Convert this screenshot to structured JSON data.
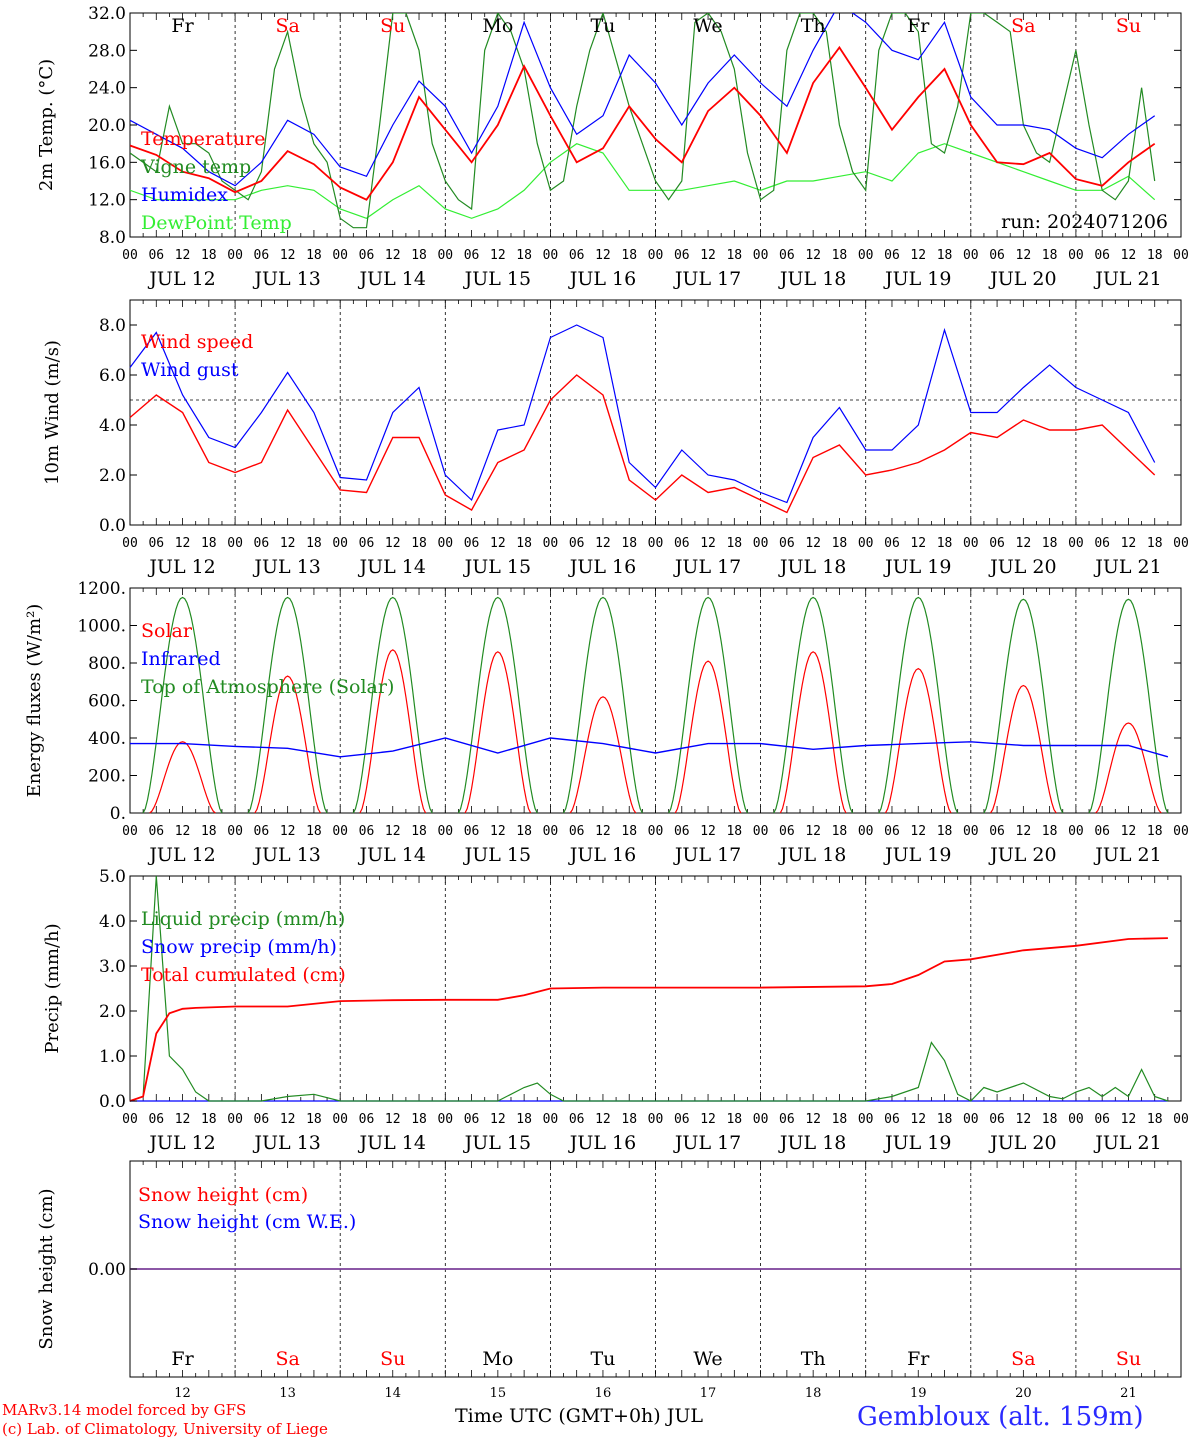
{
  "footer": {
    "model_line": "MARv3.14 model forced by GFS",
    "credit_line": "(c) Lab. of Climatology, University of Liege",
    "time_axis_label": "Time UTC (GMT+0h) JUL",
    "station": "Gembloux (alt. 159m)"
  },
  "colors": {
    "red": "#ff0000",
    "green": "#228b22",
    "blue": "#0000ff",
    "lightgreen": "#33ee33",
    "purple": "#7b3f9a",
    "weekend": "#ff0000",
    "weekday": "#000000"
  },
  "days": {
    "dates": [
      "JUL 12",
      "JUL 13",
      "JUL 14",
      "JUL 15",
      "JUL 16",
      "JUL 17",
      "JUL 18",
      "JUL 19",
      "JUL 20",
      "JUL 21"
    ],
    "weekday": [
      "Fr",
      "Sa",
      "Su",
      "Mo",
      "Tu",
      "We",
      "Th",
      "Fr",
      "Sa",
      "Su"
    ],
    "weekend": [
      false,
      true,
      true,
      false,
      false,
      false,
      false,
      false,
      true,
      true
    ],
    "day_numbers": [
      "12",
      "13",
      "14",
      "15",
      "16",
      "17",
      "18",
      "19",
      "20",
      "21"
    ],
    "hour_ticks": [
      "00",
      "06",
      "12",
      "18"
    ]
  },
  "chart_data": [
    {
      "type": "line",
      "ylabel": "2m Temp. (°C)",
      "ylim": [
        8,
        32
      ],
      "yticks": [
        "8.0",
        "12.0",
        "16.0",
        "20.0",
        "24.0",
        "28.0",
        "32.0"
      ],
      "annotation": "run: 2024071206",
      "x_unit": "hours since 2024-07-12 00 UTC",
      "series": [
        {
          "name": "Temperature",
          "color": "red",
          "x": [
            0,
            6,
            12,
            18,
            24,
            30,
            36,
            42,
            48,
            54,
            60,
            66,
            72,
            78,
            84,
            90,
            96,
            102,
            108,
            114,
            120,
            126,
            132,
            138,
            144,
            150,
            156,
            162,
            168,
            174,
            180,
            186,
            192,
            198,
            204,
            210,
            216,
            222,
            228,
            234
          ],
          "values": [
            17.8,
            16.8,
            15,
            14.3,
            12.8,
            14,
            17.2,
            15.8,
            13.3,
            12,
            16,
            23,
            19.5,
            16,
            20,
            26.3,
            21,
            16,
            17.5,
            22,
            18.5,
            16,
            21.5,
            24,
            21,
            17,
            24.5,
            28.3,
            24,
            19.5,
            23,
            26,
            20,
            16,
            15.8,
            17,
            14.2,
            13.5,
            16,
            18
          ]
        },
        {
          "name": "Vigne temp",
          "color": "green",
          "x": [
            0,
            3,
            6,
            9,
            12,
            15,
            18,
            21,
            24,
            27,
            30,
            33,
            36,
            39,
            42,
            45,
            48,
            51,
            54,
            57,
            60,
            63,
            66,
            69,
            72,
            75,
            78,
            81,
            84,
            87,
            90,
            93,
            96,
            99,
            102,
            105,
            108,
            111,
            114,
            117,
            120,
            123,
            126,
            129,
            132,
            135,
            138,
            141,
            144,
            147,
            150,
            153,
            156,
            159,
            162,
            165,
            168,
            171,
            174,
            177,
            180,
            183,
            186,
            189,
            192,
            195,
            198,
            201,
            204,
            207,
            210,
            213,
            216,
            219,
            222,
            225,
            228,
            231,
            234
          ],
          "values": [
            17,
            16,
            15,
            22,
            18,
            18,
            17,
            14,
            13,
            12,
            15,
            26,
            30,
            23,
            18,
            16,
            10,
            9,
            9,
            20,
            32,
            32,
            28,
            18,
            14,
            12,
            11,
            28,
            32,
            30,
            26,
            18,
            13,
            14,
            22,
            28,
            32,
            27,
            22,
            18,
            14,
            12,
            14,
            31,
            32,
            30,
            26,
            17,
            12,
            13,
            28,
            32,
            32,
            30,
            20,
            15,
            13,
            28,
            32,
            32,
            30,
            18,
            17,
            22,
            32,
            32,
            31,
            30,
            20,
            17,
            16,
            22,
            28,
            20,
            13,
            12,
            14,
            24,
            14
          ]
        },
        {
          "name": "Humidex",
          "color": "blue",
          "x": [
            0,
            6,
            12,
            18,
            24,
            30,
            36,
            42,
            48,
            54,
            60,
            66,
            72,
            78,
            84,
            90,
            96,
            102,
            108,
            114,
            120,
            126,
            132,
            138,
            144,
            150,
            156,
            162,
            168,
            174,
            180,
            186,
            192,
            198,
            204,
            210,
            216,
            222,
            228,
            234
          ],
          "values": [
            20.5,
            19,
            17.5,
            15,
            13.5,
            16,
            20.5,
            19,
            15.5,
            14.5,
            20,
            24.7,
            22,
            17,
            22,
            31,
            24,
            19,
            21,
            27.5,
            24.5,
            20,
            24.5,
            27.5,
            24.5,
            22,
            28,
            33,
            31,
            28,
            27,
            31,
            23,
            20,
            20,
            19.5,
            17.5,
            16.5,
            19,
            21
          ]
        },
        {
          "name": "DewPoint Temp",
          "color": "lightgreen",
          "x": [
            0,
            6,
            12,
            18,
            24,
            30,
            36,
            42,
            48,
            54,
            60,
            66,
            72,
            78,
            84,
            90,
            96,
            102,
            108,
            114,
            120,
            126,
            132,
            138,
            144,
            150,
            156,
            162,
            168,
            174,
            180,
            186,
            192,
            198,
            204,
            210,
            216,
            222,
            228,
            234
          ],
          "values": [
            13,
            12,
            12,
            12,
            12,
            13,
            13.5,
            13,
            11,
            10,
            12,
            13.5,
            11,
            10,
            11,
            13,
            16,
            18,
            17,
            13,
            13,
            13,
            13.5,
            14,
            13,
            14,
            14,
            14.5,
            15,
            14,
            17,
            18,
            17,
            16,
            15,
            14,
            13,
            13,
            14.5,
            12
          ]
        }
      ]
    },
    {
      "type": "line",
      "ylabel": "10m Wind (m/s)",
      "ylim": [
        0,
        9
      ],
      "yticks": [
        "0.0",
        "2.0",
        "4.0",
        "6.0",
        "8.0"
      ],
      "reference_line": 5.0,
      "series": [
        {
          "name": "Wind speed",
          "color": "red",
          "x": [
            0,
            6,
            12,
            18,
            24,
            30,
            36,
            42,
            48,
            54,
            60,
            66,
            72,
            78,
            84,
            90,
            96,
            102,
            108,
            114,
            120,
            126,
            132,
            138,
            144,
            150,
            156,
            162,
            168,
            174,
            180,
            186,
            192,
            198,
            204,
            210,
            216,
            222,
            228,
            234
          ],
          "values": [
            4.3,
            5.2,
            4.5,
            2.5,
            2.1,
            2.5,
            4.6,
            3,
            1.4,
            1.3,
            3.5,
            3.5,
            1.2,
            0.6,
            2.5,
            3,
            5,
            6,
            5.2,
            1.8,
            1,
            2,
            1.3,
            1.5,
            1,
            0.5,
            2.7,
            3.2,
            2,
            2.2,
            2.5,
            3,
            3.7,
            3.5,
            4.2,
            3.8,
            3.8,
            4,
            3,
            2
          ]
        },
        {
          "name": "Wind gust",
          "color": "blue",
          "x": [
            0,
            6,
            12,
            18,
            24,
            30,
            36,
            42,
            48,
            54,
            60,
            66,
            72,
            78,
            84,
            90,
            96,
            102,
            108,
            114,
            120,
            126,
            132,
            138,
            144,
            150,
            156,
            162,
            168,
            174,
            180,
            186,
            192,
            198,
            204,
            210,
            216,
            222,
            228,
            234
          ],
          "values": [
            6.3,
            7.7,
            5.2,
            3.5,
            3.1,
            4.5,
            6.1,
            4.5,
            1.9,
            1.8,
            4.5,
            5.5,
            2,
            1,
            3.8,
            4,
            7.5,
            8,
            7.5,
            2.5,
            1.5,
            3,
            2,
            1.8,
            1.3,
            0.9,
            3.5,
            4.7,
            3,
            3,
            4,
            7.8,
            4.5,
            4.5,
            5.5,
            6.4,
            5.5,
            5,
            4.5,
            2.5
          ]
        }
      ]
    },
    {
      "type": "line",
      "ylabel": "Energy fluxes (W/m²)",
      "ylim": [
        0,
        1200
      ],
      "yticks": [
        "0.",
        "200.",
        "400.",
        "600.",
        "800.",
        "1000.",
        "1200."
      ],
      "series": [
        {
          "name": "Solar",
          "color": "red",
          "daily_peak_hour": [
            12,
            12,
            12,
            12,
            12,
            12,
            12,
            12,
            12,
            12
          ],
          "daily_peak": [
            380,
            730,
            870,
            860,
            620,
            810,
            860,
            770,
            680,
            480
          ]
        },
        {
          "name": "Infrared",
          "color": "blue",
          "x": [
            0,
            12,
            24,
            36,
            48,
            60,
            72,
            84,
            96,
            108,
            120,
            132,
            144,
            156,
            168,
            180,
            192,
            204,
            216,
            228,
            237
          ],
          "values": [
            370,
            370,
            355,
            345,
            300,
            330,
            400,
            320,
            400,
            370,
            320,
            370,
            370,
            340,
            360,
            370,
            380,
            360,
            360,
            360,
            300
          ]
        },
        {
          "name": "Top of Atmosphere (Solar)",
          "color": "green",
          "daily_peak_hour": [
            12,
            12,
            12,
            12,
            12,
            12,
            12,
            12,
            12,
            12
          ],
          "daily_peak": [
            1150,
            1150,
            1150,
            1150,
            1150,
            1150,
            1150,
            1150,
            1140,
            1140
          ]
        }
      ]
    },
    {
      "type": "line",
      "ylabel": "Precip (mm/h)",
      "ylim": [
        0,
        5
      ],
      "yticks": [
        "0.0",
        "1.0",
        "2.0",
        "3.0",
        "4.0",
        "5.0"
      ],
      "series": [
        {
          "name": "Liquid precip (mm/h)",
          "color": "green",
          "x": [
            0,
            3,
            6,
            9,
            12,
            15,
            18,
            21,
            24,
            30,
            36,
            42,
            48,
            66,
            84,
            90,
            93,
            96,
            99,
            102,
            108,
            132,
            150,
            168,
            174,
            180,
            183,
            186,
            189,
            192,
            195,
            198,
            204,
            210,
            213,
            216,
            219,
            222,
            225,
            228,
            231,
            234,
            237
          ],
          "values": [
            0,
            0.1,
            5,
            1,
            0.7,
            0.2,
            0,
            0,
            0,
            0,
            0.1,
            0.15,
            0,
            0,
            0,
            0.3,
            0.4,
            0.15,
            0,
            0,
            0,
            0,
            0,
            0,
            0.1,
            0.3,
            1.3,
            0.9,
            0.15,
            0,
            0.3,
            0.2,
            0.4,
            0.1,
            0.05,
            0.2,
            0.3,
            0.1,
            0.3,
            0.1,
            0.7,
            0.1,
            0
          ]
        },
        {
          "name": "Snow precip (mm/h)",
          "color": "blue",
          "x": [
            0,
            237
          ],
          "values": [
            0,
            0
          ]
        },
        {
          "name": "Total cumulated (cm)",
          "color": "red",
          "x": [
            0,
            3,
            6,
            9,
            12,
            15,
            24,
            36,
            48,
            60,
            72,
            84,
            90,
            96,
            108,
            120,
            144,
            168,
            174,
            180,
            186,
            192,
            204,
            216,
            228,
            237
          ],
          "values": [
            0,
            0.1,
            1.5,
            1.95,
            2.05,
            2.07,
            2.1,
            2.1,
            2.22,
            2.24,
            2.25,
            2.25,
            2.35,
            2.5,
            2.52,
            2.52,
            2.52,
            2.55,
            2.6,
            2.8,
            3.1,
            3.15,
            3.35,
            3.45,
            3.6,
            3.62
          ]
        }
      ]
    },
    {
      "type": "line",
      "ylabel": "Snow height (cm)",
      "yticks": [
        "0.00"
      ],
      "series": [
        {
          "name": "Snow height (cm)",
          "color": "red",
          "x": [
            0,
            237
          ],
          "values": [
            0,
            0
          ]
        },
        {
          "name": "Snow height (cm W.E.)",
          "color": "blue",
          "x": [
            0,
            237
          ],
          "values": [
            0,
            0
          ]
        }
      ]
    }
  ]
}
